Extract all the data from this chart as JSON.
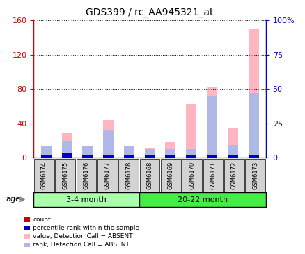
{
  "title": "GDS399 / rc_AA945321_at",
  "samples": [
    "GSM6174",
    "GSM6175",
    "GSM6176",
    "GSM6177",
    "GSM6178",
    "GSM6168",
    "GSM6169",
    "GSM6170",
    "GSM6171",
    "GSM6172",
    "GSM6173"
  ],
  "groups": [
    {
      "label": "3-4 month",
      "indices": [
        0,
        1,
        2,
        3,
        4
      ]
    },
    {
      "label": "20-22 month",
      "indices": [
        5,
        6,
        7,
        8,
        9,
        10
      ]
    }
  ],
  "value_absent": [
    13,
    28,
    13,
    44,
    13,
    11,
    18,
    62,
    82,
    35,
    150
  ],
  "rank_absent_pct": [
    8,
    12,
    8,
    20,
    8,
    6,
    6,
    6,
    45,
    9,
    47
  ],
  "count": [
    2,
    2,
    2,
    2,
    2,
    2,
    2,
    2,
    2,
    2,
    2
  ],
  "pct_rank": [
    2,
    3,
    2,
    2,
    2,
    2,
    2,
    2,
    2,
    2,
    2
  ],
  "ylim_left": [
    0,
    160
  ],
  "ylim_right": [
    0,
    100
  ],
  "yticks_left": [
    0,
    40,
    80,
    120,
    160
  ],
  "yticks_right": [
    0,
    25,
    50,
    75,
    100
  ],
  "ytick_labels_left": [
    "0",
    "40",
    "80",
    "120",
    "160"
  ],
  "ytick_labels_right": [
    "0",
    "25",
    "50",
    "75",
    "100%"
  ],
  "left_color": "#CC0000",
  "right_color": "#0000CC",
  "bar_width": 0.5,
  "value_absent_color": "#FFB6C1",
  "rank_absent_color": "#B0B8E8",
  "count_color": "#CC0000",
  "pct_rank_color": "#0000CC",
  "age_label": "age",
  "group1_color": "#AAFFAA",
  "group2_color": "#44EE44",
  "tick_bg_color": "#D3D3D3"
}
